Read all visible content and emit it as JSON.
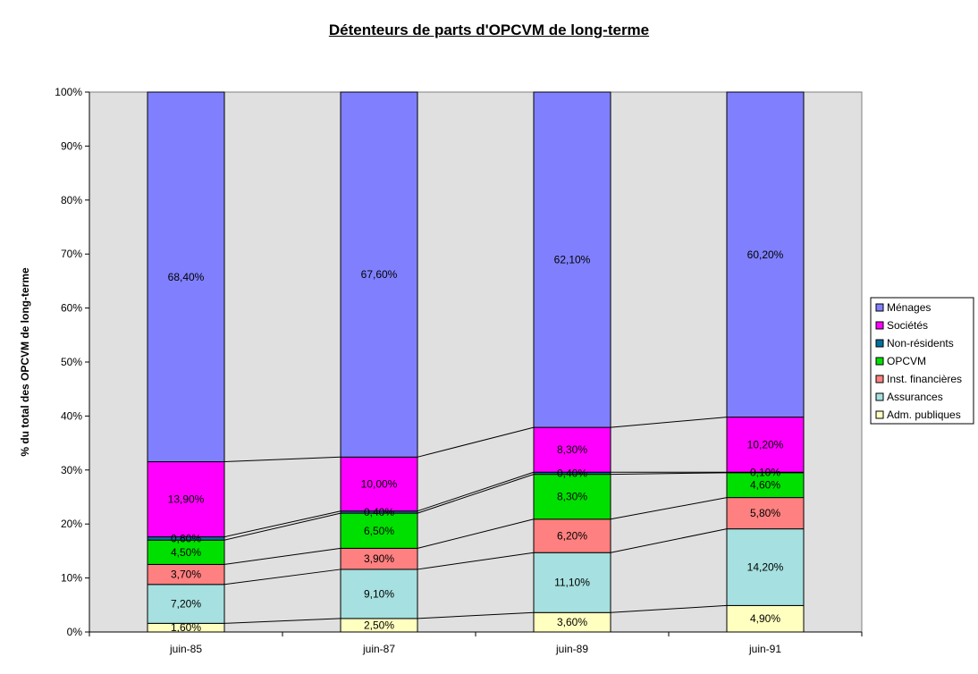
{
  "chart_data": {
    "type": "bar",
    "stacked": true,
    "percent_stacked": true,
    "title": "Détenteurs de parts d'OPCVM de long-terme",
    "ylabel": "% du total des OPCVM de long-terme",
    "xlabel": "",
    "ylim": [
      0,
      100
    ],
    "yticks": [
      "0%",
      "10%",
      "20%",
      "30%",
      "40%",
      "50%",
      "60%",
      "70%",
      "80%",
      "90%",
      "100%"
    ],
    "categories": [
      "juin-85",
      "juin-87",
      "juin-89",
      "juin-91"
    ],
    "series": [
      {
        "name": "Adm. publiques",
        "color": "#ffffc0",
        "values": [
          1.6,
          2.5,
          3.6,
          4.9
        ],
        "labels": [
          "1,60%",
          "2,50%",
          "3,60%",
          "4,90%"
        ]
      },
      {
        "name": "Assurances",
        "color": "#a6e0e0",
        "values": [
          7.2,
          9.1,
          11.1,
          14.2
        ],
        "labels": [
          "7,20%",
          "9,10%",
          "11,10%",
          "14,20%"
        ]
      },
      {
        "name": "Inst. financières",
        "color": "#ff8080",
        "values": [
          3.7,
          3.9,
          6.2,
          5.8
        ],
        "labels": [
          "3,70%",
          "3,90%",
          "6,20%",
          "5,80%"
        ]
      },
      {
        "name": "OPCVM",
        "color": "#00e000",
        "values": [
          4.5,
          6.5,
          8.3,
          4.6
        ],
        "labels": [
          "4,50%",
          "6,50%",
          "8,30%",
          "4,60%"
        ]
      },
      {
        "name": "Non-résidents",
        "color": "#0070a0",
        "values": [
          0.6,
          0.4,
          0.4,
          0.1
        ],
        "labels": [
          "0,60%",
          "0,40%",
          "0,40%",
          "0,10%"
        ]
      },
      {
        "name": "Sociétés",
        "color": "#ff00ff",
        "values": [
          13.9,
          10.0,
          8.3,
          10.2
        ],
        "labels": [
          "13,90%",
          "10,00%",
          "8,30%",
          "10,20%"
        ]
      },
      {
        "name": "Ménages",
        "color": "#8080ff",
        "values": [
          68.4,
          67.6,
          62.1,
          60.2
        ],
        "labels": [
          "68,40%",
          "67,60%",
          "62,10%",
          "60,20%"
        ]
      }
    ],
    "legend_order": [
      "Ménages",
      "Sociétés",
      "Non-résidents",
      "OPCVM",
      "Inst. financières",
      "Assurances",
      "Adm. publiques"
    ],
    "legend_position": "right",
    "series_lines": true,
    "plot_background": "#e0e0e0",
    "grid": false
  }
}
